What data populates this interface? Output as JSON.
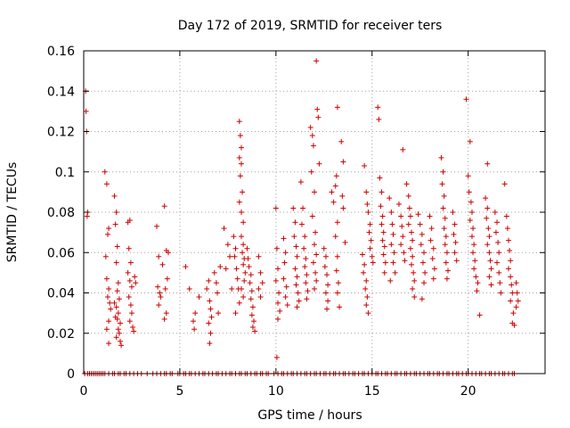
{
  "chart_data": {
    "type": "scatter",
    "title": "Day 172 of 2019, SRMTID for receiver ters",
    "xlabel": "GPS time / hours",
    "ylabel": "SRMTID / TECUs",
    "xlim": [
      0,
      24
    ],
    "ylim": [
      0,
      0.16
    ],
    "grid": true,
    "marker": "+",
    "color": "#cc0000",
    "x_ticks": [
      {
        "value": 0,
        "label": "0"
      },
      {
        "value": 5,
        "label": "5"
      },
      {
        "value": 10,
        "label": "10"
      },
      {
        "value": 15,
        "label": "15"
      },
      {
        "value": 20,
        "label": "20"
      }
    ],
    "y_ticks": [
      {
        "value": 0,
        "label": "0"
      },
      {
        "value": 0.02,
        "label": "0.02"
      },
      {
        "value": 0.04,
        "label": "0.04"
      },
      {
        "value": 0.06,
        "label": "0.06"
      },
      {
        "value": 0.08,
        "label": "0.08"
      },
      {
        "value": 0.1,
        "label": "0.1"
      },
      {
        "value": 0.12,
        "label": "0.12"
      },
      {
        "value": 0.14,
        "label": "0.14"
      },
      {
        "value": 0.16,
        "label": "0.16"
      }
    ],
    "points": [
      [
        0.1,
        0.14
      ],
      [
        0.12,
        0.13
      ],
      [
        0.15,
        0.12
      ],
      [
        0.2,
        0.08
      ],
      [
        0.18,
        0.078
      ],
      [
        1.1,
        0.1
      ],
      [
        1.2,
        0.094
      ],
      [
        1.3,
        0.072
      ],
      [
        1.25,
        0.069
      ],
      [
        1.15,
        0.058
      ],
      [
        1.2,
        0.047
      ],
      [
        1.3,
        0.042
      ],
      [
        1.25,
        0.038
      ],
      [
        1.35,
        0.035
      ],
      [
        1.4,
        0.032
      ],
      [
        1.3,
        0.026
      ],
      [
        1.2,
        0.022
      ],
      [
        1.3,
        0.015
      ],
      [
        1.6,
        0.088
      ],
      [
        1.7,
        0.08
      ],
      [
        1.65,
        0.074
      ],
      [
        1.75,
        0.063
      ],
      [
        1.7,
        0.055
      ],
      [
        1.8,
        0.045
      ],
      [
        1.75,
        0.041
      ],
      [
        1.85,
        0.037
      ],
      [
        1.7,
        0.033
      ],
      [
        1.8,
        0.03
      ],
      [
        1.75,
        0.027
      ],
      [
        1.9,
        0.025
      ],
      [
        1.8,
        0.022
      ],
      [
        1.85,
        0.02
      ],
      [
        1.7,
        0.018
      ],
      [
        1.9,
        0.016
      ],
      [
        1.95,
        0.014
      ],
      [
        1.6,
        0.035
      ],
      [
        1.65,
        0.028
      ],
      [
        2.3,
        0.075
      ],
      [
        2.4,
        0.076
      ],
      [
        2.35,
        0.062
      ],
      [
        2.45,
        0.055
      ],
      [
        2.3,
        0.05
      ],
      [
        2.4,
        0.046
      ],
      [
        2.5,
        0.043
      ],
      [
        2.35,
        0.038
      ],
      [
        2.45,
        0.034
      ],
      [
        2.5,
        0.03
      ],
      [
        2.4,
        0.026
      ],
      [
        2.55,
        0.023
      ],
      [
        2.6,
        0.021
      ],
      [
        2.7,
        0.045
      ],
      [
        2.65,
        0.048
      ],
      [
        3.8,
        0.073
      ],
      [
        3.9,
        0.058
      ],
      [
        3.85,
        0.043
      ],
      [
        3.95,
        0.04
      ],
      [
        4.0,
        0.038
      ],
      [
        3.9,
        0.034
      ],
      [
        4.1,
        0.054
      ],
      [
        4.2,
        0.083
      ],
      [
        4.3,
        0.061
      ],
      [
        4.35,
        0.047
      ],
      [
        4.25,
        0.042
      ],
      [
        4.4,
        0.06
      ],
      [
        4.3,
        0.03
      ],
      [
        4.2,
        0.027
      ],
      [
        5.3,
        0.053
      ],
      [
        5.5,
        0.042
      ],
      [
        5.8,
        0.03
      ],
      [
        5.7,
        0.026
      ],
      [
        5.75,
        0.022
      ],
      [
        6.0,
        0.038
      ],
      [
        6.4,
        0.042
      ],
      [
        6.5,
        0.046
      ],
      [
        6.55,
        0.036
      ],
      [
        6.6,
        0.032
      ],
      [
        6.65,
        0.028
      ],
      [
        6.5,
        0.025
      ],
      [
        6.6,
        0.02
      ],
      [
        6.55,
        0.015
      ],
      [
        6.8,
        0.05
      ],
      [
        6.9,
        0.045
      ],
      [
        6.95,
        0.04
      ],
      [
        7.0,
        0.03
      ],
      [
        7.1,
        0.053
      ],
      [
        7.3,
        0.072
      ],
      [
        7.4,
        0.052
      ],
      [
        7.5,
        0.064
      ],
      [
        7.6,
        0.058
      ],
      [
        7.7,
        0.042
      ],
      [
        7.8,
        0.068
      ],
      [
        7.9,
        0.062
      ],
      [
        7.85,
        0.058
      ],
      [
        7.95,
        0.052
      ],
      [
        8.0,
        0.047
      ],
      [
        8.05,
        0.042
      ],
      [
        8.1,
        0.035
      ],
      [
        7.9,
        0.03
      ],
      [
        8.1,
        0.125
      ],
      [
        8.15,
        0.118
      ],
      [
        8.2,
        0.112
      ],
      [
        8.1,
        0.107
      ],
      [
        8.2,
        0.104
      ],
      [
        8.15,
        0.098
      ],
      [
        8.25,
        0.09
      ],
      [
        8.1,
        0.085
      ],
      [
        8.2,
        0.08
      ],
      [
        8.3,
        0.075
      ],
      [
        8.2,
        0.068
      ],
      [
        8.3,
        0.064
      ],
      [
        8.25,
        0.06
      ],
      [
        8.35,
        0.057
      ],
      [
        8.3,
        0.054
      ],
      [
        8.4,
        0.05
      ],
      [
        8.35,
        0.046
      ],
      [
        8.2,
        0.042
      ],
      [
        8.3,
        0.038
      ],
      [
        8.5,
        0.062
      ],
      [
        8.55,
        0.057
      ],
      [
        8.6,
        0.053
      ],
      [
        8.7,
        0.049
      ],
      [
        8.65,
        0.045
      ],
      [
        8.75,
        0.041
      ],
      [
        8.7,
        0.037
      ],
      [
        8.8,
        0.033
      ],
      [
        8.75,
        0.029
      ],
      [
        8.85,
        0.026
      ],
      [
        8.8,
        0.023
      ],
      [
        8.9,
        0.021
      ],
      [
        9.1,
        0.058
      ],
      [
        9.2,
        0.05
      ],
      [
        9.1,
        0.042
      ],
      [
        9.2,
        0.038
      ],
      [
        9.3,
        0.045
      ],
      [
        10.0,
        0.082
      ],
      [
        10.05,
        0.062
      ],
      [
        10.1,
        0.052
      ],
      [
        10.0,
        0.046
      ],
      [
        10.15,
        0.04
      ],
      [
        10.1,
        0.035
      ],
      [
        10.2,
        0.031
      ],
      [
        10.1,
        0.027
      ],
      [
        10.05,
        0.008
      ],
      [
        10.4,
        0.067
      ],
      [
        10.5,
        0.06
      ],
      [
        10.45,
        0.055
      ],
      [
        10.4,
        0.047
      ],
      [
        10.55,
        0.043
      ],
      [
        10.5,
        0.038
      ],
      [
        10.6,
        0.034
      ],
      [
        10.9,
        0.082
      ],
      [
        11.0,
        0.075
      ],
      [
        10.95,
        0.068
      ],
      [
        11.05,
        0.063
      ],
      [
        11.1,
        0.058
      ],
      [
        11.0,
        0.052
      ],
      [
        11.1,
        0.048
      ],
      [
        11.05,
        0.044
      ],
      [
        11.15,
        0.04
      ],
      [
        11.2,
        0.036
      ],
      [
        11.1,
        0.033
      ],
      [
        11.3,
        0.095
      ],
      [
        11.4,
        0.082
      ],
      [
        11.35,
        0.074
      ],
      [
        11.5,
        0.068
      ],
      [
        11.45,
        0.062
      ],
      [
        11.55,
        0.057
      ],
      [
        11.5,
        0.053
      ],
      [
        11.6,
        0.049
      ],
      [
        11.55,
        0.045
      ],
      [
        11.65,
        0.041
      ],
      [
        11.6,
        0.037
      ],
      [
        11.8,
        0.122
      ],
      [
        11.9,
        0.118
      ],
      [
        11.95,
        0.113
      ],
      [
        11.85,
        0.1
      ],
      [
        12.0,
        0.09
      ],
      [
        11.9,
        0.078
      ],
      [
        12.05,
        0.07
      ],
      [
        12.0,
        0.064
      ],
      [
        12.1,
        0.059
      ],
      [
        11.95,
        0.055
      ],
      [
        12.05,
        0.05
      ],
      [
        12.1,
        0.046
      ],
      [
        12.0,
        0.042
      ],
      [
        12.1,
        0.155
      ],
      [
        12.15,
        0.131
      ],
      [
        12.2,
        0.127
      ],
      [
        12.25,
        0.104
      ],
      [
        12.5,
        0.062
      ],
      [
        12.6,
        0.058
      ],
      [
        12.55,
        0.053
      ],
      [
        12.65,
        0.049
      ],
      [
        12.7,
        0.044
      ],
      [
        12.6,
        0.04
      ],
      [
        12.7,
        0.036
      ],
      [
        12.65,
        0.032
      ],
      [
        12.9,
        0.09
      ],
      [
        13.0,
        0.085
      ],
      [
        13.1,
        0.093
      ],
      [
        13.15,
        0.098
      ],
      [
        13.2,
        0.075
      ],
      [
        13.1,
        0.068
      ],
      [
        13.2,
        0.058
      ],
      [
        13.15,
        0.051
      ],
      [
        13.25,
        0.045
      ],
      [
        13.2,
        0.04
      ],
      [
        13.3,
        0.033
      ],
      [
        13.2,
        0.132
      ],
      [
        13.4,
        0.115
      ],
      [
        13.5,
        0.105
      ],
      [
        13.45,
        0.088
      ],
      [
        13.5,
        0.082
      ],
      [
        13.6,
        0.065
      ],
      [
        14.5,
        0.059
      ],
      [
        14.6,
        0.054
      ],
      [
        14.55,
        0.05
      ],
      [
        14.7,
        0.046
      ],
      [
        14.65,
        0.042
      ],
      [
        14.75,
        0.038
      ],
      [
        14.7,
        0.034
      ],
      [
        14.8,
        0.03
      ],
      [
        14.6,
        0.103
      ],
      [
        14.7,
        0.09
      ],
      [
        14.75,
        0.084
      ],
      [
        14.8,
        0.08
      ],
      [
        14.9,
        0.074
      ],
      [
        14.85,
        0.07
      ],
      [
        14.95,
        0.066
      ],
      [
        14.9,
        0.062
      ],
      [
        15.0,
        0.058
      ],
      [
        15.05,
        0.055
      ],
      [
        15.3,
        0.132
      ],
      [
        15.35,
        0.126
      ],
      [
        15.4,
        0.097
      ],
      [
        15.5,
        0.09
      ],
      [
        15.45,
        0.083
      ],
      [
        15.55,
        0.078
      ],
      [
        15.5,
        0.074
      ],
      [
        15.6,
        0.07
      ],
      [
        15.55,
        0.066
      ],
      [
        15.65,
        0.063
      ],
      [
        15.6,
        0.059
      ],
      [
        15.7,
        0.055
      ],
      [
        15.65,
        0.05
      ],
      [
        15.9,
        0.087
      ],
      [
        16.0,
        0.08
      ],
      [
        16.05,
        0.074
      ],
      [
        16.1,
        0.069
      ],
      [
        16.0,
        0.064
      ],
      [
        16.15,
        0.06
      ],
      [
        16.1,
        0.055
      ],
      [
        16.2,
        0.05
      ],
      [
        15.95,
        0.046
      ],
      [
        16.4,
        0.084
      ],
      [
        16.5,
        0.078
      ],
      [
        16.55,
        0.073
      ],
      [
        16.6,
        0.068
      ],
      [
        16.5,
        0.064
      ],
      [
        16.65,
        0.06
      ],
      [
        16.7,
        0.056
      ],
      [
        16.6,
        0.111
      ],
      [
        16.8,
        0.094
      ],
      [
        16.9,
        0.088
      ],
      [
        16.95,
        0.082
      ],
      [
        17.0,
        0.078
      ],
      [
        16.9,
        0.074
      ],
      [
        17.05,
        0.07
      ],
      [
        17.1,
        0.066
      ],
      [
        17.0,
        0.062
      ],
      [
        17.1,
        0.058
      ],
      [
        17.05,
        0.054
      ],
      [
        17.15,
        0.05
      ],
      [
        17.2,
        0.046
      ],
      [
        17.1,
        0.042
      ],
      [
        17.2,
        0.038
      ],
      [
        17.4,
        0.079
      ],
      [
        17.5,
        0.074
      ],
      [
        17.6,
        0.069
      ],
      [
        17.55,
        0.064
      ],
      [
        17.7,
        0.06
      ],
      [
        17.65,
        0.055
      ],
      [
        17.75,
        0.05
      ],
      [
        17.7,
        0.045
      ],
      [
        17.6,
        0.037
      ],
      [
        18.0,
        0.078
      ],
      [
        18.1,
        0.072
      ],
      [
        18.05,
        0.066
      ],
      [
        18.2,
        0.062
      ],
      [
        18.15,
        0.057
      ],
      [
        18.25,
        0.052
      ],
      [
        18.2,
        0.047
      ],
      [
        18.6,
        0.107
      ],
      [
        18.7,
        0.1
      ],
      [
        18.65,
        0.094
      ],
      [
        18.75,
        0.088
      ],
      [
        18.7,
        0.082
      ],
      [
        18.8,
        0.077
      ],
      [
        18.75,
        0.072
      ],
      [
        18.85,
        0.068
      ],
      [
        18.8,
        0.064
      ],
      [
        18.9,
        0.06
      ],
      [
        18.85,
        0.055
      ],
      [
        18.95,
        0.051
      ],
      [
        18.9,
        0.047
      ],
      [
        19.2,
        0.08
      ],
      [
        19.3,
        0.074
      ],
      [
        19.25,
        0.069
      ],
      [
        19.35,
        0.065
      ],
      [
        19.3,
        0.06
      ],
      [
        19.4,
        0.056
      ],
      [
        19.9,
        0.136
      ],
      [
        20.0,
        0.098
      ],
      [
        20.1,
        0.115
      ],
      [
        20.05,
        0.09
      ],
      [
        20.15,
        0.085
      ],
      [
        20.2,
        0.08
      ],
      [
        20.1,
        0.076
      ],
      [
        20.25,
        0.072
      ],
      [
        20.2,
        0.068
      ],
      [
        20.3,
        0.064
      ],
      [
        20.25,
        0.06
      ],
      [
        20.35,
        0.056
      ],
      [
        20.3,
        0.052
      ],
      [
        20.4,
        0.048
      ],
      [
        20.5,
        0.045
      ],
      [
        20.45,
        0.041
      ],
      [
        20.6,
        0.029
      ],
      [
        20.9,
        0.087
      ],
      [
        21.0,
        0.082
      ],
      [
        20.95,
        0.077
      ],
      [
        21.05,
        0.072
      ],
      [
        21.1,
        0.068
      ],
      [
        21.0,
        0.064
      ],
      [
        21.1,
        0.06
      ],
      [
        21.15,
        0.056
      ],
      [
        21.2,
        0.052
      ],
      [
        21.1,
        0.048
      ],
      [
        21.2,
        0.044
      ],
      [
        21.0,
        0.104
      ],
      [
        21.4,
        0.08
      ],
      [
        21.5,
        0.075
      ],
      [
        21.45,
        0.07
      ],
      [
        21.55,
        0.065
      ],
      [
        21.6,
        0.06
      ],
      [
        21.5,
        0.055
      ],
      [
        21.6,
        0.05
      ],
      [
        21.65,
        0.045
      ],
      [
        21.7,
        0.04
      ],
      [
        21.9,
        0.094
      ],
      [
        22.0,
        0.078
      ],
      [
        22.05,
        0.072
      ],
      [
        22.1,
        0.066
      ],
      [
        22.15,
        0.061
      ],
      [
        22.2,
        0.056
      ],
      [
        22.1,
        0.052
      ],
      [
        22.2,
        0.048
      ],
      [
        22.25,
        0.044
      ],
      [
        22.3,
        0.04
      ],
      [
        22.2,
        0.036
      ],
      [
        22.35,
        0.03
      ],
      [
        22.3,
        0.025
      ],
      [
        22.5,
        0.045
      ],
      [
        22.55,
        0.04
      ],
      [
        22.6,
        0.036
      ],
      [
        22.5,
        0.033
      ],
      [
        22.4,
        0.024
      ]
    ],
    "zero_points": [
      0.05,
      0.2,
      0.3,
      0.4,
      0.5,
      0.6,
      0.7,
      0.8,
      0.9,
      1.0,
      1.1,
      1.3,
      1.5,
      1.6,
      1.8,
      1.9,
      2.1,
      2.2,
      2.4,
      2.6,
      2.8,
      3.0,
      3.3,
      3.6,
      3.8,
      4.0,
      4.2,
      4.3,
      4.5,
      4.6,
      4.9,
      5.0,
      5.2,
      5.3,
      5.5,
      5.6,
      5.8,
      6.0,
      6.2,
      6.3,
      6.5,
      6.7,
      6.9,
      7.0,
      7.2,
      7.4,
      7.6,
      7.7,
      7.9,
      8.1,
      8.2,
      8.4,
      8.5,
      8.7,
      8.9,
      9.0,
      9.2,
      9.3,
      9.5,
      9.6,
      9.9,
      10.1,
      10.3,
      10.4,
      10.6,
      10.8,
      10.9,
      11.1,
      11.3,
      11.5,
      11.6,
      11.8,
      12.0,
      12.1,
      12.3,
      12.5,
      12.6,
      12.8,
      13.0,
      13.1,
      13.3,
      13.5,
      13.6,
      13.8,
      14.0,
      14.1,
      14.3,
      14.5,
      14.6,
      14.8,
      15.0,
      15.2,
      15.3,
      15.5,
      15.7,
      15.8,
      16.0,
      16.2,
      16.3,
      16.5,
      16.7,
      16.8,
      17.0,
      17.2,
      17.3,
      17.5,
      17.7,
      17.9,
      18.0,
      18.2,
      18.4,
      18.5,
      18.7,
      18.9,
      19.0,
      19.2,
      19.4,
      19.5,
      19.7,
      19.9,
      20.0,
      20.2,
      20.4,
      20.6,
      20.7,
      20.9,
      21.1,
      21.2,
      21.4,
      21.6,
      21.8,
      21.9,
      22.1,
      22.3,
      22.4
    ]
  }
}
